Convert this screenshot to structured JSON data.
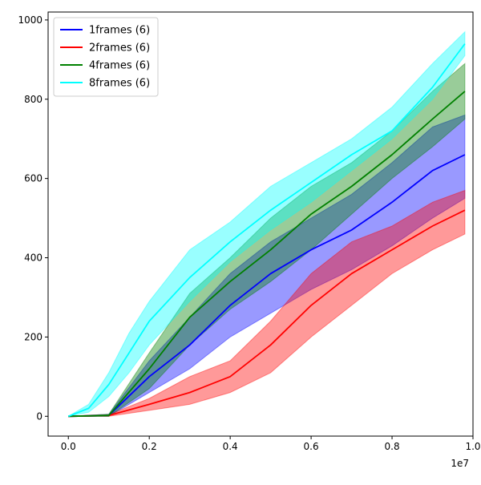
{
  "chart_data": {
    "type": "line",
    "title": "",
    "xlabel": "",
    "ylabel": "",
    "x_offset_text": "1e7",
    "x_scale": 10000000,
    "xlim": [
      -0.05,
      1.0
    ],
    "ylim": [
      -50,
      1020
    ],
    "xticks": [
      0.0,
      0.2,
      0.4,
      0.6,
      0.8,
      1.0
    ],
    "xtick_labels": [
      "0.0",
      "0.2",
      "0.4",
      "0.6",
      "0.8",
      "1.0"
    ],
    "yticks": [
      0,
      200,
      400,
      600,
      800,
      1000
    ],
    "ytick_labels": [
      "0",
      "200",
      "400",
      "600",
      "800",
      "1000"
    ],
    "grid": false,
    "legend_position": "upper-left",
    "series": [
      {
        "name": "1frames (6)",
        "color": "#0000ff",
        "band_opacity": 0.4,
        "x": [
          0,
          0.1,
          0.2,
          0.3,
          0.4,
          0.5,
          0.6,
          0.7,
          0.8,
          0.9,
          0.98
        ],
        "mean": [
          0,
          2,
          100,
          180,
          280,
          360,
          420,
          470,
          540,
          620,
          660
        ],
        "lower": [
          0,
          0,
          60,
          120,
          200,
          260,
          320,
          370,
          430,
          500,
          550
        ],
        "upper": [
          0,
          5,
          140,
          250,
          360,
          440,
          500,
          560,
          640,
          730,
          760
        ]
      },
      {
        "name": "2frames (6)",
        "color": "#ff0000",
        "band_opacity": 0.4,
        "x": [
          0,
          0.1,
          0.2,
          0.3,
          0.4,
          0.5,
          0.6,
          0.7,
          0.8,
          0.9,
          0.98
        ],
        "mean": [
          0,
          2,
          30,
          60,
          100,
          180,
          280,
          360,
          420,
          480,
          520
        ],
        "lower": [
          0,
          0,
          15,
          30,
          60,
          110,
          200,
          280,
          360,
          420,
          460
        ],
        "upper": [
          0,
          4,
          45,
          100,
          140,
          240,
          360,
          440,
          480,
          540,
          570
        ]
      },
      {
        "name": "4frames (6)",
        "color": "#008000",
        "band_opacity": 0.4,
        "x": [
          0,
          0.1,
          0.2,
          0.3,
          0.4,
          0.5,
          0.6,
          0.7,
          0.8,
          0.9,
          0.98
        ],
        "mean": [
          0,
          2,
          120,
          250,
          340,
          420,
          510,
          580,
          660,
          750,
          820
        ],
        "lower": [
          0,
          0,
          70,
          180,
          270,
          340,
          420,
          510,
          600,
          680,
          750
        ],
        "upper": [
          0,
          5,
          160,
          310,
          400,
          500,
          580,
          640,
          720,
          820,
          890
        ]
      },
      {
        "name": "8frames (6)",
        "color": "#00ffff",
        "band_opacity": 0.4,
        "x": [
          0,
          0.05,
          0.1,
          0.15,
          0.2,
          0.3,
          0.4,
          0.5,
          0.6,
          0.7,
          0.8,
          0.9,
          0.98
        ],
        "mean": [
          0,
          20,
          80,
          160,
          240,
          350,
          440,
          520,
          590,
          660,
          720,
          830,
          940
        ],
        "lower": [
          0,
          10,
          50,
          110,
          180,
          290,
          390,
          470,
          540,
          620,
          700,
          800,
          910
        ],
        "upper": [
          0,
          30,
          110,
          210,
          290,
          420,
          490,
          580,
          640,
          700,
          780,
          890,
          970
        ]
      }
    ]
  }
}
